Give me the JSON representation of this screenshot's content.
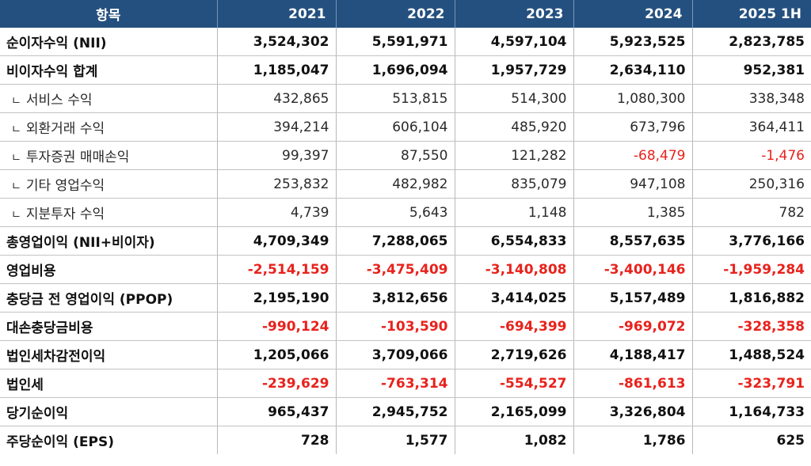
{
  "header": {
    "item": "항목",
    "years": [
      "2021",
      "2022",
      "2023",
      "2024",
      "2025 1H"
    ]
  },
  "rows": [
    {
      "label": "순이자수익 (NII)",
      "values": [
        "3,524,302",
        "5,591,971",
        "4,597,104",
        "5,923,525",
        "2,823,785"
      ]
    },
    {
      "label": "비이자수익 합계",
      "values": [
        "1,185,047",
        "1,696,094",
        "1,957,729",
        "2,634,110",
        "952,381"
      ]
    },
    {
      "label": "서비스 수익",
      "values": [
        "432,865",
        "513,815",
        "514,300",
        "1,080,300",
        "338,348"
      ]
    },
    {
      "label": "외환거래 수익",
      "values": [
        "394,214",
        "606,104",
        "485,920",
        "673,796",
        "364,411"
      ]
    },
    {
      "label": "투자증권 매매손익",
      "values": [
        "99,397",
        "87,550",
        "121,282",
        "-68,479",
        "-1,476"
      ]
    },
    {
      "label": "기타 영업수익",
      "values": [
        "253,832",
        "482,982",
        "835,079",
        "947,108",
        "250,316"
      ]
    },
    {
      "label": "지분투자 수익",
      "values": [
        "4,739",
        "5,643",
        "1,148",
        "1,385",
        "782"
      ]
    },
    {
      "label": "총영업이익 (NII+비이자)",
      "values": [
        "4,709,349",
        "7,288,065",
        "6,554,833",
        "8,557,635",
        "3,776,166"
      ]
    },
    {
      "label": "영업비용",
      "values": [
        "-2,514,159",
        "-3,475,409",
        "-3,140,808",
        "-3,400,146",
        "-1,959,284"
      ]
    },
    {
      "label": "충당금 전 영업이익 (PPOP)",
      "values": [
        "2,195,190",
        "3,812,656",
        "3,414,025",
        "5,157,489",
        "1,816,882"
      ]
    },
    {
      "label": "대손충당금비용",
      "values": [
        "-990,124",
        "-103,590",
        "-694,399",
        "-969,072",
        "-328,358"
      ]
    },
    {
      "label": "법인세차감전이익",
      "values": [
        "1,205,066",
        "3,709,066",
        "2,719,626",
        "4,188,417",
        "1,488,524"
      ]
    },
    {
      "label": "법인세",
      "values": [
        "-239,629",
        "-763,314",
        "-554,527",
        "-861,613",
        "-323,791"
      ]
    },
    {
      "label": "당기순이익",
      "values": [
        "965,437",
        "2,945,752",
        "2,165,099",
        "3,326,804",
        "1,164,733"
      ]
    },
    {
      "label": "주당순이익 (EPS)",
      "values": [
        "728",
        "1,577",
        "1,082",
        "1,786",
        "625"
      ]
    }
  ],
  "sub_marker": "ㄴ",
  "colors": {
    "header_bg": "#24507f",
    "header_text": "#ffffff",
    "negative": "#e8221c",
    "text": "#111111"
  }
}
